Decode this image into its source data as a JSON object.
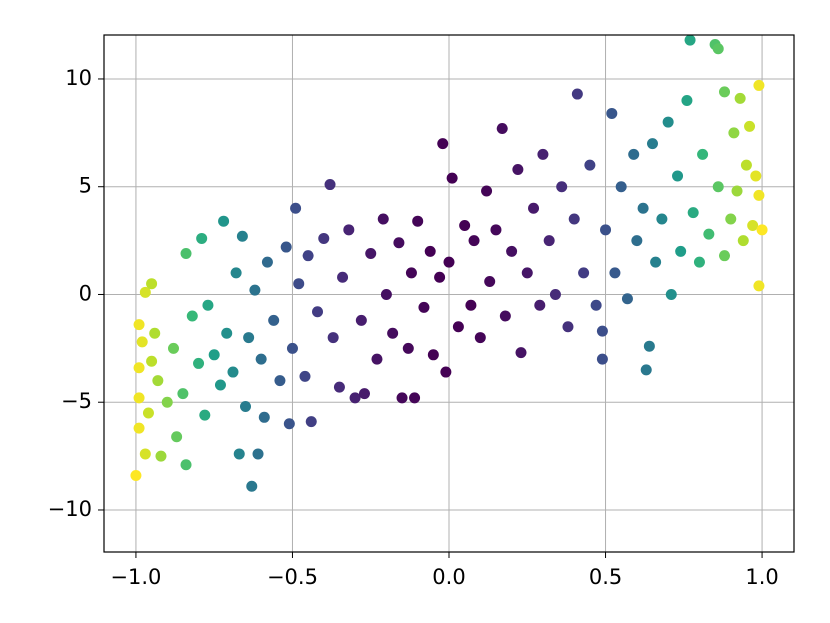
{
  "chart_data": {
    "type": "scatter",
    "x": [
      -1.0,
      -0.99,
      -0.99,
      -0.99,
      -0.98,
      -0.99,
      -0.97,
      -0.96,
      -0.95,
      -0.94,
      -0.97,
      -0.95,
      -0.93,
      -0.92,
      -0.9,
      -0.88,
      -0.87,
      -0.85,
      -0.84,
      -0.84,
      -0.82,
      -0.8,
      -0.79,
      -0.78,
      -0.77,
      -0.75,
      -0.73,
      -0.72,
      -0.71,
      -0.69,
      -0.68,
      -0.67,
      -0.66,
      -0.65,
      -0.64,
      -0.63,
      -0.62,
      -0.61,
      -0.6,
      -0.59,
      -0.58,
      -0.56,
      -0.54,
      -0.52,
      -0.51,
      -0.5,
      -0.49,
      -0.48,
      -0.46,
      -0.45,
      -0.44,
      -0.42,
      -0.4,
      -0.38,
      -0.37,
      -0.35,
      -0.34,
      -0.32,
      -0.3,
      -0.28,
      -0.27,
      -0.25,
      -0.23,
      -0.21,
      -0.2,
      -0.18,
      -0.16,
      -0.15,
      -0.13,
      -0.12,
      -0.11,
      -0.1,
      -0.08,
      -0.06,
      -0.05,
      -0.03,
      -0.02,
      -0.01,
      0.0,
      0.01,
      0.03,
      0.05,
      0.07,
      0.08,
      0.1,
      0.12,
      0.13,
      0.15,
      0.17,
      0.18,
      0.2,
      0.22,
      0.23,
      0.25,
      0.27,
      0.29,
      0.3,
      0.32,
      0.34,
      0.36,
      0.38,
      0.4,
      0.41,
      0.43,
      0.45,
      0.47,
      0.49,
      0.49,
      0.5,
      0.52,
      0.53,
      0.55,
      0.57,
      0.59,
      0.6,
      0.62,
      0.63,
      0.64,
      0.65,
      0.66,
      0.68,
      0.7,
      0.71,
      0.73,
      0.74,
      0.76,
      0.77,
      0.78,
      0.8,
      0.81,
      0.83,
      0.85,
      0.86,
      0.86,
      0.88,
      0.88,
      0.9,
      0.91,
      0.92,
      0.93,
      0.94,
      0.95,
      0.96,
      0.97,
      0.98,
      0.99,
      0.99,
      1.0,
      0.99
    ],
    "y": [
      -8.4,
      -6.2,
      -4.8,
      -3.4,
      -2.2,
      -1.4,
      -7.4,
      -5.5,
      -3.1,
      -1.8,
      0.1,
      0.5,
      -4.0,
      -7.5,
      -5.0,
      -2.5,
      -6.6,
      -4.6,
      -7.9,
      1.9,
      -1.0,
      -3.2,
      2.6,
      -5.6,
      -0.5,
      -2.8,
      -4.2,
      3.4,
      -1.8,
      -3.6,
      1.0,
      -7.4,
      2.7,
      -5.2,
      -2.0,
      -8.9,
      0.2,
      -7.4,
      -3.0,
      -5.7,
      1.5,
      -1.2,
      -4.0,
      2.2,
      -6.0,
      -2.5,
      4.0,
      0.5,
      -3.8,
      1.8,
      -5.9,
      -0.8,
      2.6,
      5.1,
      -2.0,
      -4.3,
      0.8,
      3.0,
      -4.8,
      -1.2,
      -4.6,
      1.9,
      -3.0,
      3.5,
      0.0,
      -1.8,
      2.4,
      -4.8,
      -2.5,
      1.0,
      -4.8,
      3.4,
      -0.6,
      2.0,
      -2.8,
      0.8,
      7.0,
      -3.6,
      1.5,
      5.4,
      -1.5,
      3.2,
      -0.5,
      2.5,
      -2.0,
      4.8,
      0.6,
      3.0,
      7.7,
      -1.0,
      2.0,
      5.8,
      -2.7,
      1.0,
      4.0,
      -0.5,
      6.5,
      2.5,
      0.0,
      5.0,
      -1.5,
      3.5,
      9.3,
      1.0,
      6.0,
      -0.5,
      -3.0,
      -1.7,
      3.0,
      8.4,
      1.0,
      5.0,
      -0.2,
      6.5,
      2.5,
      4.0,
      -3.5,
      -2.4,
      7.0,
      1.5,
      3.5,
      8.0,
      0.0,
      5.5,
      2.0,
      9.0,
      11.8,
      3.8,
      1.5,
      6.5,
      2.8,
      11.6,
      11.4,
      5.0,
      9.4,
      1.8,
      3.5,
      7.5,
      4.8,
      9.1,
      2.5,
      6.0,
      7.8,
      3.2,
      5.5,
      9.7,
      0.4,
      3.0,
      4.6
    ],
    "c": [
      1.0,
      0.98,
      0.98,
      0.98,
      0.96,
      0.98,
      0.94,
      0.92,
      0.9,
      0.88,
      0.94,
      0.9,
      0.86,
      0.85,
      0.81,
      0.77,
      0.76,
      0.72,
      0.71,
      0.71,
      0.67,
      0.64,
      0.62,
      0.61,
      0.59,
      0.56,
      0.53,
      0.52,
      0.5,
      0.48,
      0.46,
      0.45,
      0.44,
      0.42,
      0.41,
      0.4,
      0.38,
      0.37,
      0.36,
      0.35,
      0.34,
      0.31,
      0.29,
      0.27,
      0.26,
      0.25,
      0.24,
      0.23,
      0.21,
      0.2,
      0.19,
      0.18,
      0.16,
      0.14,
      0.14,
      0.12,
      0.12,
      0.1,
      0.09,
      0.08,
      0.07,
      0.06,
      0.05,
      0.04,
      0.04,
      0.03,
      0.03,
      0.02,
      0.02,
      0.01,
      0.01,
      0.01,
      0.01,
      0,
      0,
      0,
      0,
      0,
      0,
      0,
      0,
      0,
      0,
      0.01,
      0.01,
      0.01,
      0.02,
      0.02,
      0.03,
      0.03,
      0.04,
      0.05,
      0.05,
      0.06,
      0.07,
      0.08,
      0.09,
      0.1,
      0.12,
      0.13,
      0.14,
      0.16,
      0.17,
      0.18,
      0.2,
      0.22,
      0.24,
      0.24,
      0.25,
      0.27,
      0.28,
      0.3,
      0.32,
      0.35,
      0.36,
      0.38,
      0.4,
      0.41,
      0.42,
      0.44,
      0.46,
      0.49,
      0.5,
      0.53,
      0.55,
      0.58,
      0.59,
      0.61,
      0.64,
      0.66,
      0.69,
      0.72,
      0.74,
      0.74,
      0.77,
      0.77,
      0.81,
      0.83,
      0.85,
      0.86,
      0.88,
      0.9,
      0.92,
      0.94,
      0.96,
      0.98,
      0.98,
      1.0,
      0.98
    ],
    "colormap": "viridis",
    "clim": [
      0,
      1
    ],
    "xlim": [
      -1.102,
      1.102
    ],
    "ylim": [
      -11.95,
      12.04
    ],
    "xticks": [
      {
        "value": -1.0,
        "label": "−1.0"
      },
      {
        "value": -0.5,
        "label": "−0.5"
      },
      {
        "value": 0.0,
        "label": "0.0"
      },
      {
        "value": 0.5,
        "label": "0.5"
      },
      {
        "value": 1.0,
        "label": "1.0"
      }
    ],
    "yticks": [
      {
        "value": -10,
        "label": "−10"
      },
      {
        "value": -5,
        "label": "−5"
      },
      0,
      5,
      10
    ],
    "grid": true
  }
}
